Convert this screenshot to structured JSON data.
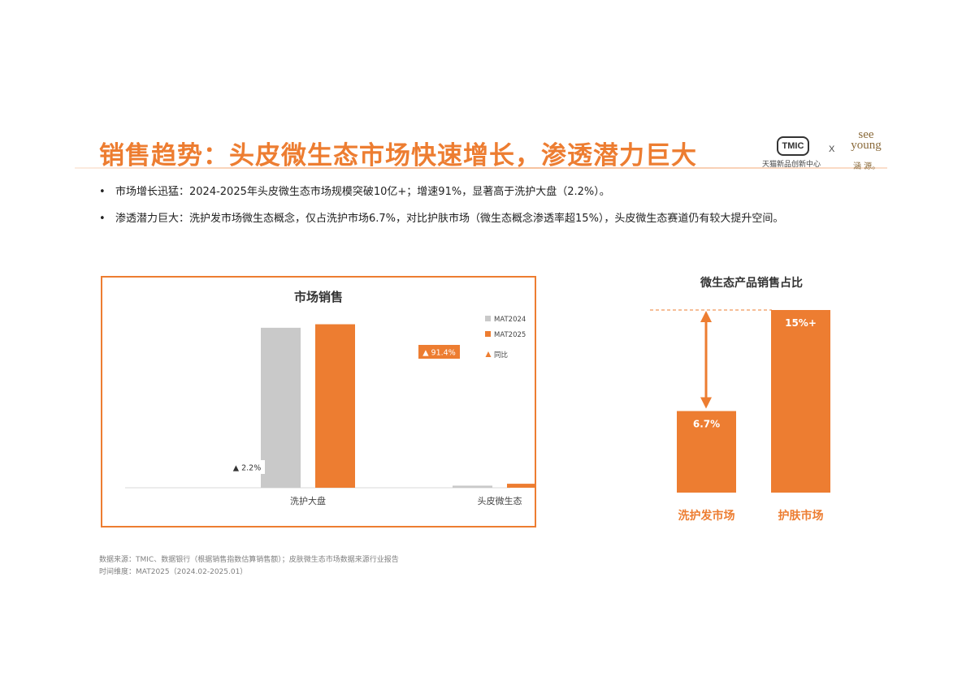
{
  "header": {
    "title": "销售趋势：头皮微生态市场快速增长，渗透潜力巨大",
    "logo_tmic": "TMIC",
    "logo_tmic_sub": "天猫新品创新中心",
    "logo_x": "X",
    "logo_seeyoung": "see young",
    "logo_seeyoung_cn": "涵 源。"
  },
  "bullets": [
    {
      "dot": "•",
      "text": "市场增长迅猛：2024-2025年头皮微生态市场规模突破10亿+；增速91%，显著高于洗护大盘（2.2%）。"
    },
    {
      "dot": "•",
      "text": "渗透潜力巨大：洗护发市场微生态概念，仅占洗护市场6.7%，对比护肤市场（微生态概念渗透率超15%），头皮微生态赛道仍有较大提升空间。"
    }
  ],
  "colors": {
    "accent": "#ED7D31",
    "gray_bar": "#C9C9C9",
    "axis": "#D9D9D9"
  },
  "chart_data": [
    {
      "type": "bar",
      "title": "市场销售",
      "categories": [
        "洗护大盘",
        "头皮微生态"
      ],
      "series": [
        {
          "name": "MAT2024",
          "color": "#C9C9C9",
          "values": [
            100,
            1.3
          ]
        },
        {
          "name": "MAT2025",
          "color": "#ED7D31",
          "values": [
            102.2,
            2.5
          ]
        }
      ],
      "yoy": {
        "name": "同比",
        "labels": [
          "▲ 2.2%",
          "▲ 91.4%"
        ]
      },
      "ylim": [
        0,
        104
      ],
      "legend_position": "right"
    },
    {
      "type": "bar",
      "title": "微生态产品销售占比",
      "categories": [
        "洗护发市场",
        "护肤市场"
      ],
      "values": [
        6.7,
        15
      ],
      "value_labels": [
        "6.7%",
        "15%+"
      ],
      "color": "#ED7D31",
      "ylim": [
        0,
        15
      ]
    }
  ],
  "source": {
    "line1": "数据来源：TMIC、数据银行（根据销售指数估算销售额）；皮肤微生态市场数据来源行业报告",
    "line2": "时间维度：MAT2025（2024.02-2025.01）"
  }
}
